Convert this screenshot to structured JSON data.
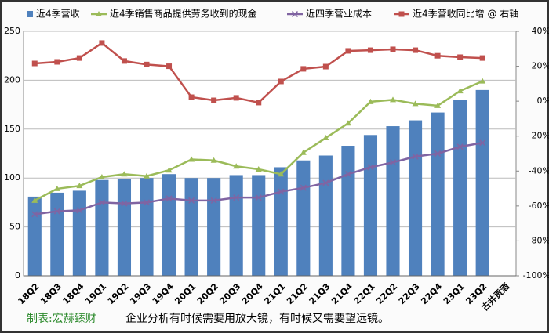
{
  "chart_data": {
    "type": "bar-line",
    "categories": [
      "18Q2",
      "18Q3",
      "18Q4",
      "19Q1",
      "19Q2",
      "19Q3",
      "19Q4",
      "20Q1",
      "20Q2",
      "20Q3",
      "20Q4",
      "21Q1",
      "21Q2",
      "21Q3",
      "21Q4",
      "22Q1",
      "22Q2",
      "22Q3",
      "22Q4",
      "23Q1",
      "23Q2",
      "古井贡酒"
    ],
    "series": [
      {
        "name": "近4季营收",
        "type": "bar",
        "color": "#4f81bd",
        "values": [
          81,
          85,
          87,
          98,
          99,
          100,
          104,
          100,
          100,
          103,
          103,
          111,
          118,
          123,
          133,
          144,
          153,
          159,
          167,
          180,
          190,
          null
        ]
      },
      {
        "name": "近4季销售商品提供劳务收到的现金",
        "type": "line",
        "marker": "triangle",
        "color": "#9bbb59",
        "values": [
          77,
          89,
          92,
          101,
          104,
          102,
          108,
          119,
          118,
          112,
          109,
          104,
          126,
          141,
          156,
          178,
          180,
          176,
          174,
          189,
          199,
          null
        ]
      },
      {
        "name": "近四季营业成本",
        "type": "line",
        "marker": "x",
        "color": "#8064a2",
        "values": [
          63,
          66,
          67,
          75,
          74,
          75,
          79,
          77,
          77,
          80,
          80,
          86,
          90,
          95,
          104,
          111,
          116,
          122,
          125,
          132,
          136,
          null
        ]
      },
      {
        "name": "近4季营收同比增 @ 右轴",
        "type": "line",
        "marker": "square",
        "color": "#c0504d",
        "axis": "y2",
        "values": [
          21.6,
          22.5,
          24.7,
          33.3,
          23,
          21,
          20,
          2.3,
          0.5,
          1.9,
          -0.8,
          11.3,
          18.5,
          19.8,
          28.8,
          29.2,
          29.7,
          29.2,
          26,
          25.2,
          24.7,
          null
        ]
      }
    ],
    "ylim": [
      0,
      250
    ],
    "yticks": [
      0,
      50,
      100,
      150,
      200,
      250
    ],
    "y2lim": [
      -100,
      40
    ],
    "y2ticks": [
      {
        "value": -100,
        "label": "-100%"
      },
      {
        "value": -80,
        "label": "-80%"
      },
      {
        "value": -60,
        "label": "-60%"
      },
      {
        "value": -40,
        "label": "-40%"
      },
      {
        "value": -20,
        "label": "-20%"
      },
      {
        "value": 0,
        "label": "0%"
      },
      {
        "value": 20,
        "label": "20%"
      },
      {
        "value": 40,
        "label": "40%"
      }
    ],
    "grid": true,
    "legend": "top",
    "annotations": [
      "制表:宏赫臻财",
      "企业分析有时候需要用放大镜，有时候又需要望远镜。"
    ]
  }
}
